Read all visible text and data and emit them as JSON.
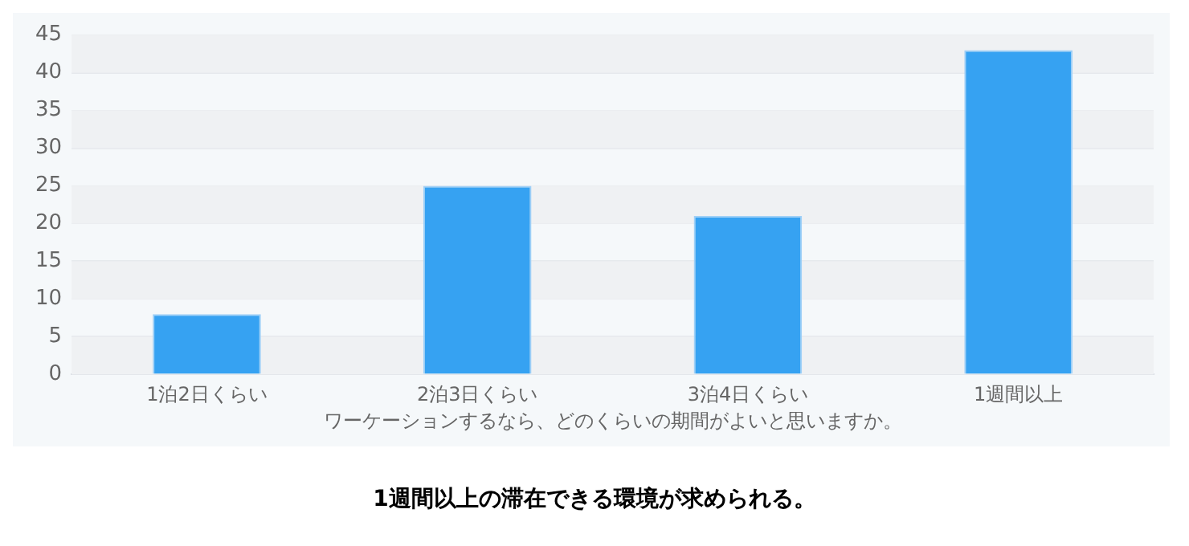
{
  "chart_data": {
    "type": "bar",
    "xlabel": "ワーケーションするなら、どのくらいの期間がよいと思いますか。",
    "categories": [
      "1泊2日くらい",
      "2泊3日くらい",
      "3泊4日くらい",
      "1週間以上"
    ],
    "values": [
      8,
      25,
      21,
      43
    ],
    "color": "#36a2f2",
    "ylim": [
      0,
      45
    ],
    "yticks": [
      0,
      5,
      10,
      15,
      20,
      25,
      30,
      35,
      40,
      45
    ],
    "grid": "y",
    "annotations": [
      "1週間以上の滞在できる環境が求められる。"
    ]
  }
}
